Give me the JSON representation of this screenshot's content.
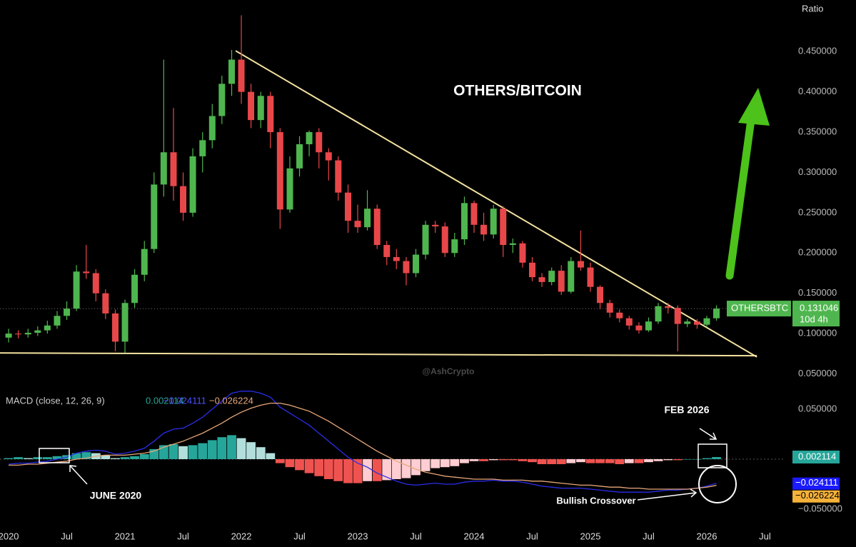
{
  "chart_data": [
    {
      "type": "candlestick",
      "title": "OTHERS/BITCOIN",
      "y_label": "Ratio",
      "symbol": "OTHERSBTC",
      "countdown": "10d 4h",
      "watermark": "@AshCrypto",
      "xlim": [
        2019.926,
        2026.675
      ],
      "xticks": [
        2020,
        {
          "value": 2020.5,
          "label": "Jul"
        },
        2021,
        {
          "value": 2021.5,
          "label": "Jul"
        },
        2022,
        {
          "value": 2022.5,
          "label": "Jul"
        },
        2023,
        {
          "value": 2023.5,
          "label": "Jul"
        },
        2024,
        {
          "value": 2024.5,
          "label": "Jul"
        },
        2025,
        {
          "value": 2025.5,
          "label": "Jul"
        },
        2026,
        {
          "value": 2026.5,
          "label": "Jul"
        }
      ],
      "ylim": [
        0.031,
        0.514
      ],
      "yticks": [
        {
          "value": 0.05,
          "label": "0.050000"
        },
        {
          "value": 0.1,
          "label": "0.100000"
        },
        {
          "value": 0.15,
          "label": "0.150000"
        },
        {
          "value": 0.2,
          "label": "0.200000"
        },
        {
          "value": 0.25,
          "label": "0.250000"
        },
        {
          "value": 0.3,
          "label": "0.300000"
        },
        {
          "value": 0.35,
          "label": "0.350000"
        },
        {
          "value": 0.4,
          "label": "0.400000"
        },
        {
          "value": 0.45,
          "label": "0.450000"
        }
      ],
      "up_color": "#4fb64f",
      "down_color": "#e8474a",
      "trendline_color": "#f3e2a0",
      "x": [
        2020.0,
        2020.083,
        2020.167,
        2020.25,
        2020.333,
        2020.417,
        2020.5,
        2020.583,
        2020.667,
        2020.75,
        2020.833,
        2020.917,
        2021.0,
        2021.083,
        2021.167,
        2021.25,
        2021.333,
        2021.417,
        2021.5,
        2021.583,
        2021.667,
        2021.75,
        2021.833,
        2021.917,
        2022.0,
        2022.083,
        2022.167,
        2022.25,
        2022.333,
        2022.417,
        2022.5,
        2022.583,
        2022.667,
        2022.75,
        2022.833,
        2022.917,
        2023.0,
        2023.083,
        2023.167,
        2023.25,
        2023.333,
        2023.417,
        2023.5,
        2023.583,
        2023.667,
        2023.75,
        2023.833,
        2023.917,
        2024.0,
        2024.083,
        2024.167,
        2024.25,
        2024.333,
        2024.417,
        2024.5,
        2024.583,
        2024.667,
        2024.75,
        2024.833,
        2024.917,
        2025.0,
        2025.083,
        2025.167,
        2025.25,
        2025.333,
        2025.417,
        2025.5,
        2025.583,
        2025.667,
        2025.75,
        2025.833,
        2025.917,
        2026.0,
        2026.083
      ],
      "open": [
        0.095,
        0.1,
        0.099,
        0.101,
        0.104,
        0.11,
        0.122,
        0.131,
        0.177,
        0.175,
        0.15,
        0.125,
        0.09,
        0.138,
        0.173,
        0.205,
        0.285,
        0.325,
        0.283,
        0.25,
        0.32,
        0.34,
        0.37,
        0.41,
        0.44,
        0.4,
        0.365,
        0.395,
        0.35,
        0.254,
        0.305,
        0.335,
        0.35,
        0.325,
        0.315,
        0.275,
        0.24,
        0.232,
        0.255,
        0.21,
        0.195,
        0.19,
        0.175,
        0.198,
        0.235,
        0.233,
        0.2,
        0.217,
        0.262,
        0.235,
        0.223,
        0.255,
        0.21,
        0.212,
        0.188,
        0.17,
        0.164,
        0.178,
        0.152,
        0.19,
        0.182,
        0.158,
        0.138,
        0.126,
        0.119,
        0.11,
        0.104,
        0.115,
        0.134,
        0.132,
        0.112,
        0.115,
        0.111,
        0.119
      ],
      "high": [
        0.106,
        0.104,
        0.106,
        0.109,
        0.116,
        0.128,
        0.14,
        0.185,
        0.21,
        0.18,
        0.155,
        0.13,
        0.142,
        0.18,
        0.215,
        0.3,
        0.44,
        0.38,
        0.3,
        0.33,
        0.35,
        0.385,
        0.42,
        0.452,
        0.495,
        0.41,
        0.4,
        0.4,
        0.355,
        0.32,
        0.345,
        0.352,
        0.355,
        0.33,
        0.32,
        0.285,
        0.26,
        0.278,
        0.26,
        0.215,
        0.205,
        0.195,
        0.205,
        0.24,
        0.24,
        0.238,
        0.225,
        0.27,
        0.265,
        0.25,
        0.26,
        0.258,
        0.218,
        0.215,
        0.195,
        0.175,
        0.182,
        0.185,
        0.195,
        0.228,
        0.188,
        0.16,
        0.142,
        0.13,
        0.122,
        0.114,
        0.12,
        0.138,
        0.138,
        0.135,
        0.118,
        0.118,
        0.122,
        0.135
      ],
      "low": [
        0.089,
        0.094,
        0.095,
        0.097,
        0.1,
        0.106,
        0.117,
        0.128,
        0.168,
        0.14,
        0.118,
        0.078,
        0.076,
        0.132,
        0.165,
        0.2,
        0.27,
        0.265,
        0.24,
        0.245,
        0.3,
        0.33,
        0.36,
        0.395,
        0.385,
        0.355,
        0.355,
        0.33,
        0.23,
        0.25,
        0.295,
        0.32,
        0.305,
        0.29,
        0.265,
        0.225,
        0.225,
        0.228,
        0.205,
        0.185,
        0.18,
        0.16,
        0.17,
        0.192,
        0.225,
        0.195,
        0.195,
        0.21,
        0.225,
        0.215,
        0.218,
        0.195,
        0.2,
        0.182,
        0.165,
        0.158,
        0.16,
        0.148,
        0.15,
        0.178,
        0.152,
        0.13,
        0.12,
        0.114,
        0.105,
        0.1,
        0.102,
        0.112,
        0.125,
        0.078,
        0.108,
        0.106,
        0.108,
        0.116
      ],
      "close": [
        0.1,
        0.099,
        0.101,
        0.104,
        0.11,
        0.122,
        0.131,
        0.177,
        0.175,
        0.15,
        0.125,
        0.09,
        0.138,
        0.173,
        0.205,
        0.285,
        0.325,
        0.283,
        0.25,
        0.32,
        0.34,
        0.37,
        0.41,
        0.44,
        0.4,
        0.365,
        0.395,
        0.35,
        0.254,
        0.305,
        0.335,
        0.35,
        0.325,
        0.315,
        0.275,
        0.24,
        0.232,
        0.255,
        0.21,
        0.195,
        0.19,
        0.175,
        0.198,
        0.235,
        0.233,
        0.2,
        0.217,
        0.262,
        0.235,
        0.223,
        0.255,
        0.21,
        0.212,
        0.188,
        0.17,
        0.164,
        0.178,
        0.152,
        0.19,
        0.182,
        0.158,
        0.138,
        0.126,
        0.119,
        0.11,
        0.104,
        0.115,
        0.134,
        0.132,
        0.112,
        0.115,
        0.111,
        0.119,
        0.131046
      ],
      "trendlines": [
        {
          "x": [
            2021.951,
            2026.43
          ],
          "y": [
            0.451,
            0.071
          ]
        },
        {
          "x": [
            2019.926,
            2026.43
          ],
          "y": [
            0.076,
            0.0725
          ]
        }
      ]
    },
    {
      "type": "macd",
      "title": "MACD (close, 12, 26, 9)",
      "ylim": [
        -0.0693,
        0.07
      ],
      "yticks": [
        {
          "value": 0.05,
          "label": "0.050000"
        },
        {
          "value": -0.05,
          "label": "−0.050000"
        }
      ],
      "annotations": [
        "FEB 2026",
        "JUNE 2020",
        "Bullish Crossover"
      ],
      "histogram": {
        "colors": [
          "#26a69a",
          "#b2dfdb",
          "#ffcdd2",
          "#ef5350"
        ],
        "values": [
          0.001,
          0.002,
          0.001,
          0.002,
          0.002,
          0.003,
          0.004,
          0.006,
          0.007,
          0.006,
          0.004,
          0.001,
          0.002,
          0.003,
          0.005,
          0.01,
          0.014,
          0.015,
          0.013,
          0.014,
          0.016,
          0.019,
          0.022,
          0.024,
          0.021,
          0.017,
          0.012,
          0.006,
          -0.004,
          -0.008,
          -0.011,
          -0.014,
          -0.017,
          -0.02,
          -0.022,
          -0.024,
          -0.024,
          -0.022,
          -0.022,
          -0.021,
          -0.02,
          -0.019,
          -0.016,
          -0.012,
          -0.009,
          -0.008,
          -0.007,
          -0.004,
          -0.002,
          -0.002,
          -0.001,
          -0.001,
          -0.001,
          -0.002,
          -0.003,
          -0.005,
          -0.005,
          -0.005,
          -0.004,
          -0.003,
          -0.004,
          -0.004,
          -0.004,
          -0.005,
          -0.004,
          -0.004,
          -0.003,
          -0.002,
          -0.001,
          -0.001,
          0.0,
          0.0,
          0.001,
          0.002114
        ]
      },
      "series": [
        {
          "color": "#2a2ee8",
          "last_value_label": "−0.024111",
          "values": [
            -0.005,
            -0.004,
            -0.004,
            -0.003,
            -0.002,
            0.0,
            0.002,
            0.006,
            0.008,
            0.009,
            0.008,
            0.005,
            0.006,
            0.008,
            0.011,
            0.018,
            0.026,
            0.03,
            0.031,
            0.036,
            0.042,
            0.05,
            0.058,
            0.066,
            0.068,
            0.068,
            0.066,
            0.062,
            0.052,
            0.046,
            0.04,
            0.034,
            0.026,
            0.018,
            0.01,
            0.002,
            -0.004,
            -0.008,
            -0.014,
            -0.018,
            -0.022,
            -0.025,
            -0.026,
            -0.025,
            -0.024,
            -0.025,
            -0.025,
            -0.023,
            -0.022,
            -0.022,
            -0.021,
            -0.022,
            -0.022,
            -0.023,
            -0.025,
            -0.027,
            -0.028,
            -0.029,
            -0.029,
            -0.029,
            -0.03,
            -0.031,
            -0.032,
            -0.033,
            -0.033,
            -0.033,
            -0.033,
            -0.032,
            -0.031,
            -0.031,
            -0.03,
            -0.029,
            -0.027,
            -0.024111
          ]
        },
        {
          "color": "#e8a77a",
          "last_value_label": "−0.026224",
          "values": [
            -0.006,
            -0.006,
            -0.005,
            -0.005,
            -0.004,
            -0.003,
            -0.002,
            0.0,
            0.001,
            0.003,
            0.004,
            0.004,
            0.004,
            0.005,
            0.006,
            0.008,
            0.012,
            0.015,
            0.018,
            0.022,
            0.026,
            0.031,
            0.036,
            0.042,
            0.047,
            0.051,
            0.054,
            0.056,
            0.056,
            0.054,
            0.051,
            0.048,
            0.043,
            0.038,
            0.032,
            0.026,
            0.02,
            0.014,
            0.008,
            0.003,
            -0.002,
            -0.006,
            -0.01,
            -0.013,
            -0.015,
            -0.017,
            -0.018,
            -0.019,
            -0.02,
            -0.02,
            -0.02,
            -0.021,
            -0.021,
            -0.021,
            -0.022,
            -0.022,
            -0.023,
            -0.024,
            -0.025,
            -0.026,
            -0.026,
            -0.027,
            -0.028,
            -0.028,
            -0.029,
            -0.029,
            -0.03,
            -0.03,
            -0.03,
            -0.03,
            -0.03,
            -0.029,
            -0.028,
            -0.026224
          ]
        }
      ]
    }
  ]
}
